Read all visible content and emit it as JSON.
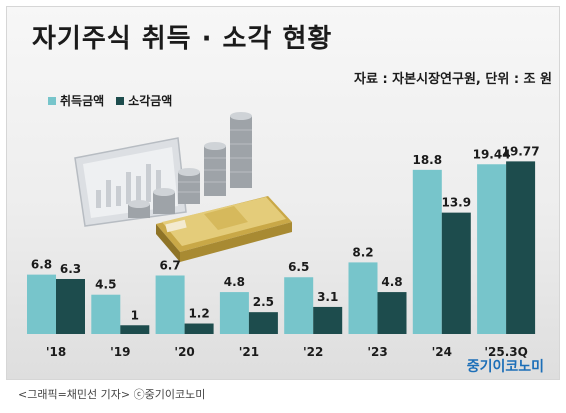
{
  "title": "자기주식 취득 · 소각 현황",
  "source_note": "자료 : 자본시장연구원, 단위 : 조 원",
  "brand": "중기이코노미",
  "caption": "<그래픽=채민선 기자>  ⓒ중기이코노미",
  "colors": {
    "acquisition": "#77c5cb",
    "cancellation": "#1d4c4d"
  },
  "chart_data": {
    "type": "bar",
    "title": "자기주식 취득 · 소각 현황",
    "categories": [
      "'18",
      "'19",
      "'20",
      "'21",
      "'22",
      "'23",
      "'24",
      "'25.3Q"
    ],
    "series": [
      {
        "name": "취득금액",
        "values": [
          6.8,
          4.5,
          6.7,
          4.8,
          6.5,
          8.2,
          18.8,
          19.44
        ],
        "labels": [
          "6.8",
          "4.5",
          "6.7",
          "4.8",
          "6.5",
          "8.2",
          "18.8",
          "19.44"
        ]
      },
      {
        "name": "소각금액",
        "values": [
          6.3,
          1,
          1.2,
          2.5,
          3.1,
          4.8,
          13.9,
          19.77
        ],
        "labels": [
          "6.3",
          "1",
          "1.2",
          "2.5",
          "3.1",
          "4.8",
          "13.9",
          "19.77"
        ]
      }
    ],
    "ylim": [
      0,
      20.5
    ],
    "legend": "top-left",
    "grid": false
  }
}
